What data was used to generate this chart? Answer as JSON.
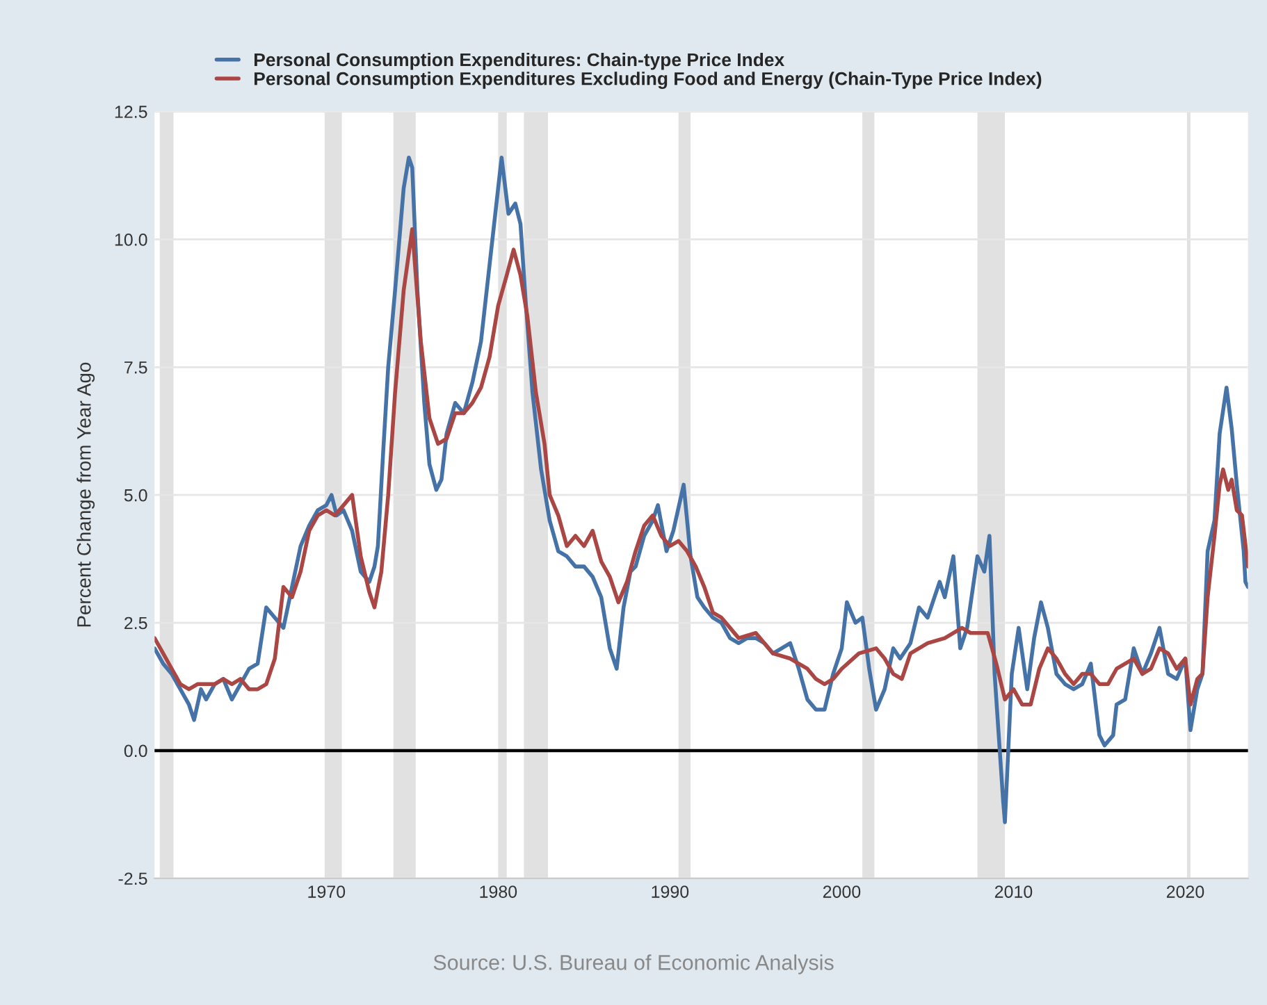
{
  "chart_data": {
    "type": "line",
    "ylabel": "Percent Change from Year Ago",
    "annotations": [
      "Source: U.S. Bureau of Economic Analysis"
    ],
    "xlim": [
      1960,
      2023.65
    ],
    "xticks": [
      1970,
      1980,
      1990,
      2000,
      2010,
      2020
    ],
    "ylim": [
      -2.5,
      12.5
    ],
    "yticks": [
      {
        "value": -2.5,
        "label": "-2.5"
      },
      {
        "value": 0,
        "label": "0.0"
      },
      {
        "value": 2.5,
        "label": "2.5"
      },
      {
        "value": 5,
        "label": "5.0"
      },
      {
        "value": 7.5,
        "label": "7.5"
      },
      {
        "value": 10,
        "label": "10.0"
      },
      {
        "value": 12.5,
        "label": "12.5"
      }
    ],
    "grid": "y",
    "legend": "top left",
    "line_style": "solid",
    "marker": "none",
    "ref_lines": [
      {
        "axis": "y",
        "value": 0,
        "color": "#000000"
      }
    ],
    "bands": [
      {
        "axis": "x",
        "from": 1960.3,
        "to": 1961.1,
        "color": "#e1e1e1"
      },
      {
        "axis": "x",
        "from": 1969.9,
        "to": 1970.9,
        "color": "#e1e1e1"
      },
      {
        "axis": "x",
        "from": 1973.9,
        "to": 1975.2,
        "color": "#e1e1e1"
      },
      {
        "axis": "x",
        "from": 1980.0,
        "to": 1980.5,
        "color": "#e1e1e1"
      },
      {
        "axis": "x",
        "from": 1981.5,
        "to": 1982.9,
        "color": "#e1e1e1"
      },
      {
        "axis": "x",
        "from": 1990.5,
        "to": 1991.2,
        "color": "#e1e1e1"
      },
      {
        "axis": "x",
        "from": 2001.2,
        "to": 2001.9,
        "color": "#e1e1e1"
      },
      {
        "axis": "x",
        "from": 2007.9,
        "to": 2009.5,
        "color": "#e1e1e1"
      },
      {
        "axis": "x",
        "from": 2020.1,
        "to": 2020.3,
        "color": "#e1e1e1"
      }
    ],
    "series": [
      {
        "name": "Personal Consumption Expenditures: Chain-type Price Index",
        "color": "#4572a7",
        "x": [
          1960.0,
          1960.5,
          1961.0,
          1961.5,
          1962.0,
          1962.3,
          1962.7,
          1963.0,
          1963.5,
          1964.0,
          1964.5,
          1965.0,
          1965.5,
          1966.0,
          1966.5,
          1967.0,
          1967.5,
          1968.0,
          1968.5,
          1969.0,
          1969.5,
          1970.0,
          1970.3,
          1970.6,
          1971.0,
          1971.5,
          1972.0,
          1972.5,
          1972.8,
          1973.0,
          1973.3,
          1973.6,
          1974.0,
          1974.5,
          1974.8,
          1975.0,
          1975.3,
          1975.7,
          1976.0,
          1976.4,
          1976.7,
          1977.0,
          1977.5,
          1978.0,
          1978.5,
          1979.0,
          1979.5,
          1980.0,
          1980.2,
          1980.6,
          1981.0,
          1981.3,
          1981.6,
          1982.0,
          1982.5,
          1983.0,
          1983.5,
          1984.0,
          1984.5,
          1985.0,
          1985.5,
          1986.0,
          1986.5,
          1986.9,
          1987.3,
          1987.7,
          1988.0,
          1988.5,
          1989.0,
          1989.3,
          1989.8,
          1990.2,
          1990.8,
          1991.2,
          1991.6,
          1992.0,
          1992.5,
          1993.0,
          1993.5,
          1994.0,
          1994.5,
          1995.0,
          1995.5,
          1996.0,
          1996.5,
          1997.0,
          1997.5,
          1998.0,
          1998.5,
          1999.0,
          1999.5,
          2000.0,
          2000.3,
          2000.8,
          2001.2,
          2001.6,
          2002.0,
          2002.5,
          2003.0,
          2003.4,
          2004.0,
          2004.5,
          2005.0,
          2005.7,
          2006.0,
          2006.5,
          2006.9,
          2007.3,
          2007.9,
          2008.3,
          2008.6,
          2008.9,
          2009.2,
          2009.4,
          2009.5,
          2009.9,
          2010.3,
          2010.8,
          2011.2,
          2011.6,
          2012.0,
          2012.5,
          2013.0,
          2013.5,
          2014.0,
          2014.5,
          2015.0,
          2015.3,
          2015.8,
          2016.0,
          2016.5,
          2017.0,
          2017.5,
          2018.0,
          2018.5,
          2019.0,
          2019.5,
          2020.0,
          2020.3,
          2020.7,
          2021.0,
          2021.3,
          2021.7,
          2022.0,
          2022.4,
          2022.7,
          2023.0,
          2023.4,
          2023.5,
          2023.65
        ],
        "values": [
          2.0,
          1.7,
          1.5,
          1.2,
          0.9,
          0.6,
          1.2,
          1.0,
          1.3,
          1.4,
          1.0,
          1.3,
          1.6,
          1.7,
          2.8,
          2.6,
          2.4,
          3.2,
          4.0,
          4.4,
          4.7,
          4.8,
          5.0,
          4.6,
          4.7,
          4.3,
          3.5,
          3.3,
          3.6,
          4.0,
          5.8,
          7.5,
          9.0,
          11.0,
          11.6,
          11.4,
          9.0,
          6.8,
          5.6,
          5.1,
          5.3,
          6.2,
          6.8,
          6.6,
          7.2,
          8.0,
          9.5,
          11.0,
          11.6,
          10.5,
          10.7,
          10.3,
          8.8,
          7.0,
          5.5,
          4.5,
          3.9,
          3.8,
          3.6,
          3.6,
          3.4,
          3.0,
          2.0,
          1.6,
          2.8,
          3.5,
          3.6,
          4.2,
          4.5,
          4.8,
          3.9,
          4.3,
          5.2,
          3.8,
          3.0,
          2.8,
          2.6,
          2.5,
          2.2,
          2.1,
          2.2,
          2.2,
          2.1,
          1.9,
          2.0,
          2.1,
          1.6,
          1.0,
          0.8,
          0.8,
          1.5,
          2.0,
          2.9,
          2.5,
          2.6,
          1.6,
          0.8,
          1.2,
          2.0,
          1.8,
          2.1,
          2.8,
          2.6,
          3.3,
          3.0,
          3.8,
          2.0,
          2.4,
          3.8,
          3.5,
          4.2,
          1.5,
          0.0,
          -1.0,
          -1.4,
          1.5,
          2.4,
          1.2,
          2.2,
          2.9,
          2.4,
          1.5,
          1.3,
          1.2,
          1.3,
          1.7,
          0.3,
          0.1,
          0.3,
          0.9,
          1.0,
          2.0,
          1.5,
          1.9,
          2.4,
          1.5,
          1.4,
          1.8,
          0.4,
          1.2,
          1.5,
          3.9,
          4.5,
          6.2,
          7.1,
          6.3,
          5.2,
          3.9,
          3.3,
          3.2
        ]
      },
      {
        "name": "Personal Consumption Expenditures Excluding Food and Energy (Chain-Type Price Index)",
        "color": "#aa4643",
        "x": [
          1960.0,
          1960.5,
          1961.0,
          1961.5,
          1962.0,
          1962.5,
          1963.0,
          1963.5,
          1964.0,
          1964.5,
          1965.0,
          1965.5,
          1966.0,
          1966.5,
          1967.0,
          1967.5,
          1968.0,
          1968.5,
          1969.0,
          1969.5,
          1970.0,
          1970.5,
          1971.0,
          1971.5,
          1972.0,
          1972.5,
          1972.8,
          1973.2,
          1973.6,
          1974.0,
          1974.5,
          1975.0,
          1975.5,
          1976.0,
          1976.5,
          1977.0,
          1977.5,
          1978.0,
          1978.5,
          1979.0,
          1979.5,
          1980.0,
          1980.5,
          1980.9,
          1981.3,
          1981.7,
          1982.2,
          1982.7,
          1983.0,
          1983.5,
          1984.0,
          1984.5,
          1985.0,
          1985.5,
          1986.0,
          1986.5,
          1987.0,
          1987.5,
          1988.0,
          1988.5,
          1989.0,
          1989.5,
          1990.0,
          1990.5,
          1991.0,
          1991.5,
          1992.0,
          1992.5,
          1993.0,
          1993.5,
          1994.0,
          1995.0,
          1996.0,
          1997.0,
          1998.0,
          1998.5,
          1999.0,
          1999.5,
          2000.0,
          2001.0,
          2002.0,
          2002.5,
          2003.0,
          2003.5,
          2004.0,
          2005.0,
          2006.0,
          2007.0,
          2007.5,
          2008.0,
          2008.5,
          2009.0,
          2009.5,
          2010.0,
          2010.5,
          2011.0,
          2011.5,
          2012.0,
          2012.5,
          2013.0,
          2013.5,
          2014.0,
          2014.5,
          2015.0,
          2015.5,
          2016.0,
          2016.5,
          2017.0,
          2017.5,
          2018.0,
          2018.5,
          2019.0,
          2019.5,
          2020.0,
          2020.3,
          2020.7,
          2021.0,
          2021.3,
          2021.7,
          2022.0,
          2022.2,
          2022.5,
          2022.7,
          2023.0,
          2023.3,
          2023.65
        ],
        "values": [
          2.2,
          1.9,
          1.6,
          1.3,
          1.2,
          1.3,
          1.3,
          1.3,
          1.4,
          1.3,
          1.4,
          1.2,
          1.2,
          1.3,
          1.8,
          3.2,
          3.0,
          3.5,
          4.3,
          4.6,
          4.7,
          4.6,
          4.8,
          5.0,
          3.8,
          3.1,
          2.8,
          3.5,
          5.0,
          7.0,
          9.0,
          10.2,
          8.0,
          6.5,
          6.0,
          6.1,
          6.6,
          6.6,
          6.8,
          7.1,
          7.7,
          8.7,
          9.3,
          9.8,
          9.3,
          8.5,
          7.0,
          6.0,
          5.0,
          4.6,
          4.0,
          4.2,
          4.0,
          4.3,
          3.7,
          3.4,
          2.9,
          3.3,
          3.9,
          4.4,
          4.6,
          4.2,
          4.0,
          4.1,
          3.9,
          3.6,
          3.2,
          2.7,
          2.6,
          2.4,
          2.2,
          2.3,
          1.9,
          1.8,
          1.6,
          1.4,
          1.3,
          1.4,
          1.6,
          1.9,
          2.0,
          1.8,
          1.5,
          1.4,
          1.9,
          2.1,
          2.2,
          2.4,
          2.3,
          2.3,
          2.3,
          1.7,
          1.0,
          1.2,
          0.9,
          0.9,
          1.6,
          2.0,
          1.8,
          1.5,
          1.3,
          1.5,
          1.5,
          1.3,
          1.3,
          1.6,
          1.7,
          1.8,
          1.5,
          1.6,
          2.0,
          1.9,
          1.6,
          1.8,
          0.9,
          1.4,
          1.5,
          3.0,
          4.2,
          5.2,
          5.5,
          5.1,
          5.3,
          4.7,
          4.6,
          3.6
        ]
      }
    ]
  }
}
